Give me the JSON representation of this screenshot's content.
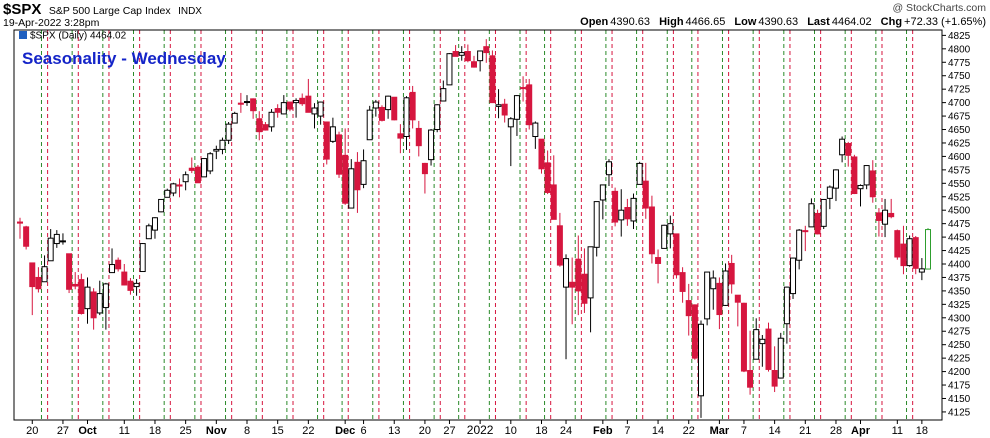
{
  "header": {
    "symbol": "$SPX",
    "name": "S&P 500 Large Cap Index",
    "exchange": "INDX",
    "timestamp": "19-Apr-2022 3:28pm",
    "copyright": "@ StockCharts.com",
    "open_label": "Open",
    "open": "4390.63",
    "high_label": "High",
    "high": "4466.65",
    "low_label": "Low",
    "low": "4390.63",
    "last_label": "Last",
    "last": "4464.02",
    "chg_label": "Chg",
    "chg": "+72.33 (+1.65%)"
  },
  "legend": {
    "label": "$SPX (Daily) 4464.02"
  },
  "colors": {
    "up": "#000000",
    "down": "#d6163f",
    "last": "#2e9e2e",
    "green_line": "#2a8a2a",
    "red_line": "#d6163f",
    "title": "#1424c8"
  },
  "chart_data": {
    "type": "candlestick",
    "title": "Seasonality - Wednesday",
    "ylim": [
      4110,
      4835
    ],
    "y_ticks": [
      4125,
      4150,
      4175,
      4200,
      4225,
      4250,
      4275,
      4300,
      4325,
      4350,
      4375,
      4400,
      4425,
      4450,
      4475,
      4500,
      4525,
      4550,
      4575,
      4600,
      4625,
      4650,
      4675,
      4700,
      4725,
      4750,
      4775,
      4800,
      4825
    ],
    "x_labels": [
      "20",
      "27",
      "Oct",
      "11",
      "18",
      "25",
      "Nov",
      "8",
      "15",
      "22",
      "Dec",
      "6",
      "13",
      "20",
      "27",
      "2022",
      "10",
      "18",
      "24",
      "Feb",
      "7",
      "14",
      "22",
      "Mar",
      "7",
      "14",
      "21",
      "28",
      "Apr",
      "11",
      "18"
    ],
    "candles": [
      {
        "d": "2021-09-16",
        "o": 4478,
        "h": 4486,
        "l": 4447,
        "c": 4476
      },
      {
        "d": "2021-09-17",
        "o": 4469,
        "h": 4471,
        "l": 4427,
        "c": 4433
      },
      {
        "d": "2021-09-20",
        "o": 4402,
        "h": 4402,
        "l": 4305,
        "c": 4358
      },
      {
        "d": "2021-09-21",
        "o": 4375,
        "h": 4394,
        "l": 4347,
        "c": 4354
      },
      {
        "d": "2021-09-22",
        "o": 4367,
        "h": 4416,
        "l": 4367,
        "c": 4395
      },
      {
        "d": "2021-09-23",
        "o": 4406,
        "h": 4465,
        "l": 4406,
        "c": 4448
      },
      {
        "d": "2021-09-24",
        "o": 4438,
        "h": 4463,
        "l": 4430,
        "c": 4455
      },
      {
        "d": "2021-09-27",
        "o": 4442,
        "h": 4457,
        "l": 4436,
        "c": 4443
      },
      {
        "d": "2021-09-28",
        "o": 4419,
        "h": 4419,
        "l": 4346,
        "c": 4353
      },
      {
        "d": "2021-09-29",
        "o": 4362,
        "h": 4385,
        "l": 4353,
        "c": 4359
      },
      {
        "d": "2021-09-30",
        "o": 4371,
        "h": 4382,
        "l": 4306,
        "c": 4308
      },
      {
        "d": "2021-10-01",
        "o": 4317,
        "h": 4375,
        "l": 4289,
        "c": 4357
      },
      {
        "d": "2021-10-04",
        "o": 4348,
        "h": 4355,
        "l": 4278,
        "c": 4300
      },
      {
        "d": "2021-10-05",
        "o": 4309,
        "h": 4369,
        "l": 4305,
        "c": 4345
      },
      {
        "d": "2021-10-06",
        "o": 4319,
        "h": 4365,
        "l": 4278,
        "c": 4363
      },
      {
        "d": "2021-10-07",
        "o": 4384,
        "h": 4429,
        "l": 4384,
        "c": 4399
      },
      {
        "d": "2021-10-08",
        "o": 4407,
        "h": 4412,
        "l": 4386,
        "c": 4391
      },
      {
        "d": "2021-10-11",
        "o": 4385,
        "h": 4400,
        "l": 4360,
        "c": 4361
      },
      {
        "d": "2021-10-12",
        "o": 4368,
        "h": 4374,
        "l": 4343,
        "c": 4351
      },
      {
        "d": "2021-10-13",
        "o": 4358,
        "h": 4372,
        "l": 4341,
        "c": 4364
      },
      {
        "d": "2021-10-14",
        "o": 4386,
        "h": 4439,
        "l": 4386,
        "c": 4438
      },
      {
        "d": "2021-10-15",
        "o": 4447,
        "h": 4475,
        "l": 4447,
        "c": 4471
      },
      {
        "d": "2021-10-18",
        "o": 4463,
        "h": 4487,
        "l": 4447,
        "c": 4486
      },
      {
        "d": "2021-10-19",
        "o": 4497,
        "h": 4520,
        "l": 4496,
        "c": 4520
      },
      {
        "d": "2021-10-20",
        "o": 4524,
        "h": 4540,
        "l": 4524,
        "c": 4537
      },
      {
        "d": "2021-10-21",
        "o": 4532,
        "h": 4551,
        "l": 4526,
        "c": 4549
      },
      {
        "d": "2021-10-22",
        "o": 4547,
        "h": 4559,
        "l": 4524,
        "c": 4545
      },
      {
        "d": "2021-10-25",
        "o": 4553,
        "h": 4572,
        "l": 4537,
        "c": 4566
      },
      {
        "d": "2021-10-26",
        "o": 4578,
        "h": 4598,
        "l": 4569,
        "c": 4574
      },
      {
        "d": "2021-10-27",
        "o": 4580,
        "h": 4584,
        "l": 4551,
        "c": 4551
      },
      {
        "d": "2021-10-28",
        "o": 4562,
        "h": 4597,
        "l": 4562,
        "c": 4596
      },
      {
        "d": "2021-10-29",
        "o": 4573,
        "h": 4608,
        "l": 4567,
        "c": 4605
      },
      {
        "d": "2021-11-01",
        "o": 4610,
        "h": 4620,
        "l": 4595,
        "c": 4613
      },
      {
        "d": "2021-11-02",
        "o": 4613,
        "h": 4635,
        "l": 4604,
        "c": 4630
      },
      {
        "d": "2021-11-03",
        "o": 4630,
        "h": 4664,
        "l": 4623,
        "c": 4660
      },
      {
        "d": "2021-11-04",
        "o": 4662,
        "h": 4683,
        "l": 4662,
        "c": 4680
      },
      {
        "d": "2021-11-05",
        "o": 4699,
        "h": 4718,
        "l": 4681,
        "c": 4697
      },
      {
        "d": "2021-11-08",
        "o": 4701,
        "h": 4714,
        "l": 4694,
        "c": 4702
      },
      {
        "d": "2021-11-09",
        "o": 4707,
        "h": 4708,
        "l": 4670,
        "c": 4685
      },
      {
        "d": "2021-11-10",
        "o": 4670,
        "h": 4684,
        "l": 4630,
        "c": 4646
      },
      {
        "d": "2021-11-11",
        "o": 4659,
        "h": 4664,
        "l": 4648,
        "c": 4649
      },
      {
        "d": "2021-11-12",
        "o": 4655,
        "h": 4688,
        "l": 4646,
        "c": 4682
      },
      {
        "d": "2021-11-15",
        "o": 4689,
        "h": 4697,
        "l": 4672,
        "c": 4682
      },
      {
        "d": "2021-11-16",
        "o": 4679,
        "h": 4714,
        "l": 4678,
        "c": 4700
      },
      {
        "d": "2021-11-17",
        "o": 4701,
        "h": 4701,
        "l": 4684,
        "c": 4688
      },
      {
        "d": "2021-11-18",
        "o": 4700,
        "h": 4708,
        "l": 4672,
        "c": 4704
      },
      {
        "d": "2021-11-19",
        "o": 4708,
        "h": 4717,
        "l": 4694,
        "c": 4698
      },
      {
        "d": "2021-11-22",
        "o": 4712,
        "h": 4744,
        "l": 4682,
        "c": 4682
      },
      {
        "d": "2021-11-23",
        "o": 4679,
        "h": 4699,
        "l": 4652,
        "c": 4690
      },
      {
        "d": "2021-11-24",
        "o": 4675,
        "h": 4702,
        "l": 4659,
        "c": 4701
      },
      {
        "d": "2021-11-26",
        "o": 4664,
        "h": 4664,
        "l": 4585,
        "c": 4595
      },
      {
        "d": "2021-11-29",
        "o": 4628,
        "h": 4672,
        "l": 4625,
        "c": 4655
      },
      {
        "d": "2021-11-30",
        "o": 4640,
        "h": 4646,
        "l": 4560,
        "c": 4567
      },
      {
        "d": "2021-12-01",
        "o": 4602,
        "h": 4652,
        "l": 4510,
        "c": 4513
      },
      {
        "d": "2021-12-02",
        "o": 4504,
        "h": 4595,
        "l": 4504,
        "c": 4577
      },
      {
        "d": "2021-12-03",
        "o": 4589,
        "h": 4608,
        "l": 4495,
        "c": 4538
      },
      {
        "d": "2021-12-06",
        "o": 4548,
        "h": 4613,
        "l": 4541,
        "c": 4592
      },
      {
        "d": "2021-12-07",
        "o": 4631,
        "h": 4694,
        "l": 4631,
        "c": 4686
      },
      {
        "d": "2021-12-08",
        "o": 4690,
        "h": 4705,
        "l": 4674,
        "c": 4701
      },
      {
        "d": "2021-12-09",
        "o": 4691,
        "h": 4695,
        "l": 4665,
        "c": 4667
      },
      {
        "d": "2021-12-10",
        "o": 4687,
        "h": 4713,
        "l": 4670,
        "c": 4712
      },
      {
        "d": "2021-12-13",
        "o": 4710,
        "h": 4710,
        "l": 4667,
        "c": 4668
      },
      {
        "d": "2021-12-14",
        "o": 4642,
        "h": 4660,
        "l": 4606,
        "c": 4634
      },
      {
        "d": "2021-12-15",
        "o": 4637,
        "h": 4712,
        "l": 4612,
        "c": 4709
      },
      {
        "d": "2021-12-16",
        "o": 4719,
        "h": 4731,
        "l": 4652,
        "c": 4668
      },
      {
        "d": "2021-12-17",
        "o": 4652,
        "h": 4666,
        "l": 4600,
        "c": 4620
      },
      {
        "d": "2021-12-20",
        "o": 4587,
        "h": 4588,
        "l": 4531,
        "c": 4568
      },
      {
        "d": "2021-12-21",
        "o": 4594,
        "h": 4651,
        "l": 4583,
        "c": 4649
      },
      {
        "d": "2021-12-22",
        "o": 4650,
        "h": 4697,
        "l": 4645,
        "c": 4696
      },
      {
        "d": "2021-12-23",
        "o": 4703,
        "h": 4741,
        "l": 4703,
        "c": 4726
      },
      {
        "d": "2021-12-27",
        "o": 4733,
        "h": 4792,
        "l": 4733,
        "c": 4791
      },
      {
        "d": "2021-12-28",
        "o": 4795,
        "h": 4807,
        "l": 4786,
        "c": 4786
      },
      {
        "d": "2021-12-29",
        "o": 4788,
        "h": 4805,
        "l": 4778,
        "c": 4793
      },
      {
        "d": "2021-12-30",
        "o": 4795,
        "h": 4808,
        "l": 4775,
        "c": 4778
      },
      {
        "d": "2021-12-31",
        "o": 4776,
        "h": 4787,
        "l": 4765,
        "c": 4766
      },
      {
        "d": "2022-01-03",
        "o": 4778,
        "h": 4796,
        "l": 4758,
        "c": 4796
      },
      {
        "d": "2022-01-04",
        "o": 4804,
        "h": 4818,
        "l": 4774,
        "c": 4793
      },
      {
        "d": "2022-01-05",
        "o": 4787,
        "h": 4797,
        "l": 4700,
        "c": 4700
      },
      {
        "d": "2022-01-06",
        "o": 4693,
        "h": 4725,
        "l": 4671,
        "c": 4696
      },
      {
        "d": "2022-01-07",
        "o": 4697,
        "h": 4707,
        "l": 4663,
        "c": 4677
      },
      {
        "d": "2022-01-10",
        "o": 4655,
        "h": 4673,
        "l": 4582,
        "c": 4670
      },
      {
        "d": "2022-01-11",
        "o": 4669,
        "h": 4714,
        "l": 4638,
        "c": 4713
      },
      {
        "d": "2022-01-12",
        "o": 4728,
        "h": 4749,
        "l": 4702,
        "c": 4726
      },
      {
        "d": "2022-01-13",
        "o": 4733,
        "h": 4744,
        "l": 4650,
        "c": 4659
      },
      {
        "d": "2022-01-14",
        "o": 4637,
        "h": 4665,
        "l": 4614,
        "c": 4662
      },
      {
        "d": "2022-01-18",
        "o": 4632,
        "h": 4632,
        "l": 4568,
        "c": 4577
      },
      {
        "d": "2022-01-19",
        "o": 4588,
        "h": 4611,
        "l": 4530,
        "c": 4533
      },
      {
        "d": "2022-01-20",
        "o": 4547,
        "h": 4602,
        "l": 4483,
        "c": 4483
      },
      {
        "d": "2022-01-21",
        "o": 4471,
        "h": 4495,
        "l": 4395,
        "c": 4398
      },
      {
        "d": "2022-01-24",
        "o": 4357,
        "h": 4418,
        "l": 4223,
        "c": 4410
      },
      {
        "d": "2022-01-25",
        "o": 4366,
        "h": 4412,
        "l": 4288,
        "c": 4357
      },
      {
        "d": "2022-01-26",
        "o": 4409,
        "h": 4453,
        "l": 4305,
        "c": 4350
      },
      {
        "d": "2022-01-27",
        "o": 4381,
        "h": 4429,
        "l": 4309,
        "c": 4327
      },
      {
        "d": "2022-01-28",
        "o": 4337,
        "h": 4432,
        "l": 4273,
        "c": 4432
      },
      {
        "d": "2022-01-31",
        "o": 4431,
        "h": 4516,
        "l": 4414,
        "c": 4516
      },
      {
        "d": "2022-02-01",
        "o": 4519,
        "h": 4547,
        "l": 4483,
        "c": 4547
      },
      {
        "d": "2022-02-02",
        "o": 4566,
        "h": 4595,
        "l": 4545,
        "c": 4590
      },
      {
        "d": "2022-02-03",
        "o": 4535,
        "h": 4542,
        "l": 4470,
        "c": 4478
      },
      {
        "d": "2022-02-04",
        "o": 4482,
        "h": 4539,
        "l": 4451,
        "c": 4500
      },
      {
        "d": "2022-02-07",
        "o": 4505,
        "h": 4521,
        "l": 4471,
        "c": 4484
      },
      {
        "d": "2022-02-08",
        "o": 4480,
        "h": 4531,
        "l": 4465,
        "c": 4522
      },
      {
        "d": "2022-02-09",
        "o": 4548,
        "h": 4590,
        "l": 4548,
        "c": 4587
      },
      {
        "d": "2022-02-10",
        "o": 4554,
        "h": 4588,
        "l": 4484,
        "c": 4504
      },
      {
        "d": "2022-02-11",
        "o": 4506,
        "h": 4527,
        "l": 4401,
        "c": 4419
      },
      {
        "d": "2022-02-14",
        "o": 4412,
        "h": 4427,
        "l": 4364,
        "c": 4401
      },
      {
        "d": "2022-02-15",
        "o": 4429,
        "h": 4473,
        "l": 4429,
        "c": 4472
      },
      {
        "d": "2022-02-16",
        "o": 4456,
        "h": 4490,
        "l": 4429,
        "c": 4475
      },
      {
        "d": "2022-02-17",
        "o": 4456,
        "h": 4456,
        "l": 4373,
        "c": 4380
      },
      {
        "d": "2022-02-18",
        "o": 4384,
        "h": 4394,
        "l": 4328,
        "c": 4349
      },
      {
        "d": "2022-02-22",
        "o": 4332,
        "h": 4363,
        "l": 4267,
        "c": 4304
      },
      {
        "d": "2022-02-23",
        "o": 4324,
        "h": 4325,
        "l": 4222,
        "c": 4225
      },
      {
        "d": "2022-02-24",
        "o": 4155,
        "h": 4295,
        "l": 4114,
        "c": 4288
      },
      {
        "d": "2022-02-25",
        "o": 4298,
        "h": 4385,
        "l": 4286,
        "c": 4385
      },
      {
        "d": "2022-02-28",
        "o": 4354,
        "h": 4388,
        "l": 4315,
        "c": 4374
      },
      {
        "d": "2022-03-01",
        "o": 4364,
        "h": 4375,
        "l": 4279,
        "c": 4306
      },
      {
        "d": "2022-03-02",
        "o": 4323,
        "h": 4401,
        "l": 4322,
        "c": 4387
      },
      {
        "d": "2022-03-03",
        "o": 4401,
        "h": 4417,
        "l": 4345,
        "c": 4363
      },
      {
        "d": "2022-03-04",
        "o": 4342,
        "h": 4342,
        "l": 4284,
        "c": 4329
      },
      {
        "d": "2022-03-07",
        "o": 4327,
        "h": 4328,
        "l": 4199,
        "c": 4201
      },
      {
        "d": "2022-03-08",
        "o": 4202,
        "h": 4276,
        "l": 4157,
        "c": 4171
      },
      {
        "d": "2022-03-09",
        "o": 4223,
        "h": 4299,
        "l": 4223,
        "c": 4278
      },
      {
        "d": "2022-03-10",
        "o": 4252,
        "h": 4268,
        "l": 4209,
        "c": 4260
      },
      {
        "d": "2022-03-11",
        "o": 4279,
        "h": 4291,
        "l": 4200,
        "c": 4204
      },
      {
        "d": "2022-03-14",
        "o": 4202,
        "h": 4247,
        "l": 4162,
        "c": 4173
      },
      {
        "d": "2022-03-15",
        "o": 4188,
        "h": 4272,
        "l": 4187,
        "c": 4262
      },
      {
        "d": "2022-03-16",
        "o": 4289,
        "h": 4358,
        "l": 4252,
        "c": 4357
      },
      {
        "d": "2022-03-17",
        "o": 4345,
        "h": 4412,
        "l": 4335,
        "c": 4411
      },
      {
        "d": "2022-03-18",
        "o": 4407,
        "h": 4465,
        "l": 4390,
        "c": 4463
      },
      {
        "d": "2022-03-21",
        "o": 4462,
        "h": 4471,
        "l": 4424,
        "c": 4461
      },
      {
        "d": "2022-03-22",
        "o": 4469,
        "h": 4522,
        "l": 4469,
        "c": 4512
      },
      {
        "d": "2022-03-23",
        "o": 4494,
        "h": 4501,
        "l": 4455,
        "c": 4456
      },
      {
        "d": "2022-03-24",
        "o": 4470,
        "h": 4520,
        "l": 4465,
        "c": 4520
      },
      {
        "d": "2022-03-25",
        "o": 4522,
        "h": 4546,
        "l": 4502,
        "c": 4543
      },
      {
        "d": "2022-03-28",
        "o": 4541,
        "h": 4576,
        "l": 4517,
        "c": 4575
      },
      {
        "d": "2022-03-29",
        "o": 4603,
        "h": 4637,
        "l": 4589,
        "c": 4632
      },
      {
        "d": "2022-03-30",
        "o": 4624,
        "h": 4627,
        "l": 4581,
        "c": 4602
      },
      {
        "d": "2022-03-31",
        "o": 4599,
        "h": 4603,
        "l": 4530,
        "c": 4531
      },
      {
        "d": "2022-04-01",
        "o": 4540,
        "h": 4548,
        "l": 4507,
        "c": 4546
      },
      {
        "d": "2022-04-04",
        "o": 4547,
        "h": 4583,
        "l": 4539,
        "c": 4583
      },
      {
        "d": "2022-04-05",
        "o": 4573,
        "h": 4593,
        "l": 4514,
        "c": 4525
      },
      {
        "d": "2022-04-06",
        "o": 4495,
        "h": 4504,
        "l": 4451,
        "c": 4481
      },
      {
        "d": "2022-04-07",
        "o": 4474,
        "h": 4521,
        "l": 4450,
        "c": 4500
      },
      {
        "d": "2022-04-08",
        "o": 4494,
        "h": 4521,
        "l": 4485,
        "c": 4488
      },
      {
        "d": "2022-04-11",
        "o": 4462,
        "h": 4464,
        "l": 4408,
        "c": 4413
      },
      {
        "d": "2022-04-12",
        "o": 4437,
        "h": 4471,
        "l": 4381,
        "c": 4397
      },
      {
        "d": "2022-04-13",
        "o": 4397,
        "h": 4453,
        "l": 4395,
        "c": 4447
      },
      {
        "d": "2022-04-14",
        "o": 4449,
        "h": 4452,
        "l": 4381,
        "c": 4392
      },
      {
        "d": "2022-04-18",
        "o": 4385,
        "h": 4411,
        "l": 4370,
        "c": 4391
      },
      {
        "d": "2022-04-19",
        "o": 4390.63,
        "h": 4466.65,
        "l": 4390.63,
        "c": 4464.02
      }
    ]
  }
}
